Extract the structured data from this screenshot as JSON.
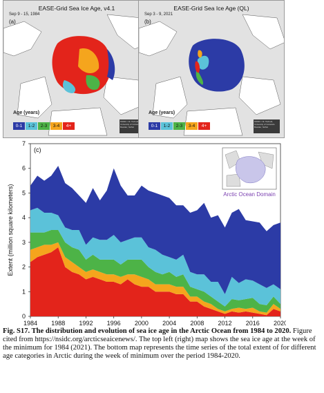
{
  "map_a": {
    "title": "EASE-Grid Sea Ice Age, v4.1",
    "date": "Sep 9 - 15, 1984",
    "letter": "(a)",
    "age_title": "Age (years)",
    "legend": [
      "0-1",
      "1-2",
      "2-3",
      "3-4",
      "4+"
    ],
    "credit": "NSIDC / M. Tschudi, University of Colorado Boulder, NASA"
  },
  "map_b": {
    "title": "EASE-Grid Sea Ice Age (QL)",
    "date": "Sep 3 - 9, 2021",
    "letter": "(b)",
    "age_title": "Age (years)",
    "legend": [
      "0-1",
      "1-2",
      "2-3",
      "3-4",
      "4+"
    ],
    "credit": "NSIDC / M. Tschudi, University of Colorado Boulder, NASA"
  },
  "colors": {
    "age_0_1": "#2c3ba6",
    "age_1_2": "#5bc2d9",
    "age_2_3": "#4db347",
    "age_3_4": "#f5a51d",
    "age_4_plus": "#e3241b",
    "ocean": "#e2e2e2",
    "land": "#ffffff"
  },
  "chart_data": {
    "type": "area",
    "panel_label": "(c)",
    "ylabel": "Extent (million square kilometers)",
    "xlabel": "",
    "xlim": [
      1984,
      2020
    ],
    "ylim": [
      0,
      7
    ],
    "x_ticks": [
      "1984",
      "1988",
      "1992",
      "1996",
      "2000",
      "2004",
      "2008",
      "2012",
      "2016",
      "2020"
    ],
    "y_ticks": [
      "0",
      "1",
      "2",
      "3",
      "4",
      "5",
      "6",
      "7"
    ],
    "x": [
      1984,
      1985,
      1986,
      1987,
      1988,
      1989,
      1990,
      1991,
      1992,
      1993,
      1994,
      1995,
      1996,
      1997,
      1998,
      1999,
      2000,
      2001,
      2002,
      2003,
      2004,
      2005,
      2006,
      2007,
      2008,
      2009,
      2010,
      2011,
      2012,
      2013,
      2014,
      2015,
      2016,
      2017,
      2018,
      2019,
      2020
    ],
    "stack_order": [
      "4+",
      "3-4",
      "2-3",
      "1-2",
      "0-1"
    ],
    "series": [
      {
        "name": "4+",
        "color": "#e3241b",
        "values": [
          2.2,
          2.4,
          2.5,
          2.6,
          2.8,
          2.0,
          1.8,
          1.7,
          1.5,
          1.6,
          1.5,
          1.4,
          1.4,
          1.3,
          1.5,
          1.3,
          1.2,
          1.2,
          1.0,
          1.0,
          1.0,
          0.9,
          0.9,
          0.6,
          0.6,
          0.4,
          0.3,
          0.2,
          0.1,
          0.2,
          0.15,
          0.2,
          0.15,
          0.1,
          0.05,
          0.3,
          0.2
        ]
      },
      {
        "name": "3-4",
        "color": "#f5a51d",
        "values": [
          0.5,
          0.4,
          0.4,
          0.3,
          0.2,
          0.4,
          0.4,
          0.3,
          0.3,
          0.3,
          0.3,
          0.3,
          0.3,
          0.3,
          0.2,
          0.4,
          0.4,
          0.3,
          0.3,
          0.3,
          0.3,
          0.3,
          0.3,
          0.2,
          0.2,
          0.2,
          0.2,
          0.1,
          0.1,
          0.1,
          0.2,
          0.1,
          0.2,
          0.1,
          0.1,
          0.2,
          0.1
        ]
      },
      {
        "name": "2-3",
        "color": "#4db347",
        "values": [
          0.7,
          0.6,
          0.5,
          0.6,
          0.5,
          0.6,
          0.6,
          0.7,
          0.5,
          0.6,
          0.5,
          0.6,
          0.6,
          0.5,
          0.6,
          0.6,
          0.7,
          0.5,
          0.5,
          0.4,
          0.5,
          0.4,
          0.5,
          0.4,
          0.3,
          0.4,
          0.3,
          0.3,
          0.2,
          0.4,
          0.3,
          0.4,
          0.4,
          0.3,
          0.3,
          0.3,
          0.2
        ]
      },
      {
        "name": "1-2",
        "color": "#5bc2d9",
        "values": [
          0.9,
          1.0,
          0.8,
          0.7,
          0.6,
          0.6,
          0.7,
          0.8,
          0.6,
          0.7,
          0.8,
          0.8,
          1.0,
          0.9,
          0.8,
          0.9,
          0.9,
          0.8,
          0.9,
          0.8,
          0.6,
          0.7,
          0.8,
          0.6,
          0.6,
          0.7,
          0.6,
          0.8,
          0.5,
          0.9,
          0.7,
          0.8,
          0.7,
          0.8,
          0.7,
          0.5,
          0.6
        ]
      },
      {
        "name": "0-1",
        "color": "#2c3ba6",
        "values": [
          1.0,
          1.3,
          1.3,
          1.5,
          2.0,
          1.8,
          1.7,
          1.4,
          1.7,
          2.0,
          1.6,
          2.0,
          2.7,
          2.3,
          1.8,
          1.7,
          2.1,
          2.3,
          2.3,
          2.4,
          2.4,
          2.2,
          2.0,
          2.4,
          2.6,
          2.9,
          2.6,
          2.7,
          2.7,
          2.6,
          3.0,
          2.4,
          2.4,
          2.5,
          2.3,
          2.4,
          2.7
        ]
      }
    ],
    "inset_label": "Arctic Ocean Domain"
  },
  "caption": {
    "bold": "Fig. S17. The distribution and evolution of sea ice age in the Arctic Ocean from 1984 to 2020.",
    "text": " Figure cited from https://nsidc.org/arcticseaicenews/. The top left (right) map shows the sea ice age at the week of the minimum for 1984 (2021). The bottom map represents the time series of the total extent of for different age categories in Arctic during the week of minimum over the period 1984-2020."
  }
}
